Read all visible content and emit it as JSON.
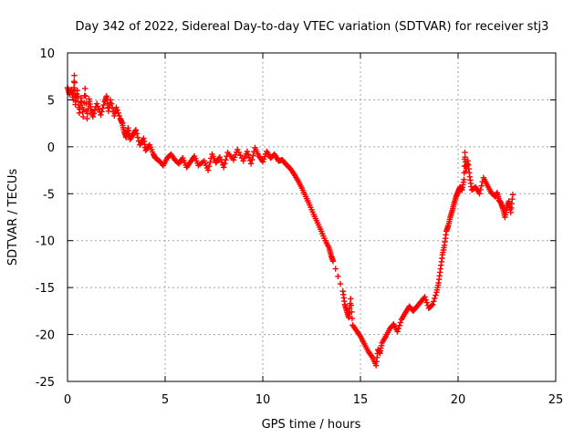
{
  "chart_data": {
    "type": "scatter",
    "title": "Day 342 of 2022, Sidereal Day-to-day VTEC variation (SDTVAR) for receiver stj3",
    "xlabel": "GPS time / hours",
    "ylabel": "SDTVAR / TECUs",
    "xlim": [
      0,
      25
    ],
    "ylim": [
      -25,
      10
    ],
    "xticks": [
      "0",
      "5",
      "10",
      "15",
      "20",
      "25"
    ],
    "yticks": [
      "10",
      "5",
      "0",
      "-5",
      "-10",
      "-15",
      "-20",
      "-25"
    ],
    "grid": true,
    "marker": "+",
    "color": "#ff0000",
    "series": [
      {
        "name": "SDTVAR",
        "points": [
          [
            0.0,
            6.3
          ],
          [
            0.1,
            5.6
          ],
          [
            0.2,
            6.1
          ],
          [
            0.3,
            5.0
          ],
          [
            0.35,
            7.6
          ],
          [
            0.4,
            4.5
          ],
          [
            0.5,
            6.0
          ],
          [
            0.6,
            3.6
          ],
          [
            0.7,
            5.2
          ],
          [
            0.8,
            3.2
          ],
          [
            0.9,
            6.2
          ],
          [
            1.0,
            3.0
          ],
          [
            1.1,
            5.1
          ],
          [
            1.2,
            4.0
          ],
          [
            1.3,
            3.2
          ],
          [
            1.5,
            4.6
          ],
          [
            1.7,
            3.4
          ],
          [
            1.9,
            4.8
          ],
          [
            2.0,
            5.4
          ],
          [
            2.1,
            3.8
          ],
          [
            2.2,
            5.0
          ],
          [
            2.4,
            3.3
          ],
          [
            2.5,
            4.2
          ],
          [
            2.7,
            3.0
          ],
          [
            2.8,
            2.5
          ],
          [
            2.9,
            1.6
          ],
          [
            3.0,
            1.0
          ],
          [
            3.1,
            2.0
          ],
          [
            3.2,
            0.8
          ],
          [
            3.4,
            1.4
          ],
          [
            3.5,
            1.8
          ],
          [
            3.7,
            0.2
          ],
          [
            3.9,
            0.9
          ],
          [
            4.0,
            -0.4
          ],
          [
            4.2,
            0.2
          ],
          [
            4.4,
            -0.8
          ],
          [
            4.5,
            -1.2
          ],
          [
            4.7,
            -1.5
          ],
          [
            4.9,
            -2.0
          ],
          [
            5.1,
            -1.2
          ],
          [
            5.3,
            -0.8
          ],
          [
            5.5,
            -1.4
          ],
          [
            5.7,
            -1.8
          ],
          [
            5.9,
            -1.2
          ],
          [
            6.1,
            -2.2
          ],
          [
            6.3,
            -1.6
          ],
          [
            6.5,
            -1.0
          ],
          [
            6.7,
            -2.0
          ],
          [
            7.0,
            -1.5
          ],
          [
            7.2,
            -2.5
          ],
          [
            7.4,
            -0.8
          ],
          [
            7.6,
            -1.7
          ],
          [
            7.8,
            -1.1
          ],
          [
            8.0,
            -2.2
          ],
          [
            8.2,
            -0.6
          ],
          [
            8.5,
            -1.4
          ],
          [
            8.7,
            -0.3
          ],
          [
            9.0,
            -1.5
          ],
          [
            9.2,
            -0.5
          ],
          [
            9.4,
            -1.8
          ],
          [
            9.6,
            -0.1
          ],
          [
            9.8,
            -1.0
          ],
          [
            10.0,
            -1.6
          ],
          [
            10.2,
            -0.5
          ],
          [
            10.4,
            -1.2
          ],
          [
            10.6,
            -0.8
          ],
          [
            10.8,
            -1.5
          ],
          [
            11.0,
            -1.4
          ],
          [
            11.2,
            -1.9
          ],
          [
            11.4,
            -2.3
          ],
          [
            11.6,
            -2.9
          ],
          [
            11.8,
            -3.6
          ],
          [
            12.0,
            -4.4
          ],
          [
            12.2,
            -5.3
          ],
          [
            12.4,
            -6.2
          ],
          [
            12.6,
            -7.2
          ],
          [
            12.8,
            -8.1
          ],
          [
            13.0,
            -9.0
          ],
          [
            13.2,
            -10.0
          ],
          [
            13.4,
            -10.8
          ],
          [
            13.5,
            -11.6
          ],
          [
            13.6,
            -12.2
          ],
          [
            14.1,
            -15.4
          ],
          [
            14.2,
            -16.8
          ],
          [
            14.3,
            -17.5
          ],
          [
            14.4,
            -18.2
          ],
          [
            14.5,
            -16.2
          ],
          [
            14.6,
            -19.0
          ],
          [
            14.8,
            -19.6
          ],
          [
            15.0,
            -20.2
          ],
          [
            15.2,
            -21.0
          ],
          [
            15.4,
            -21.8
          ],
          [
            15.6,
            -22.4
          ],
          [
            15.8,
            -23.3
          ],
          [
            15.9,
            -21.6
          ],
          [
            16.0,
            -22.0
          ],
          [
            16.1,
            -20.9
          ],
          [
            16.3,
            -20.2
          ],
          [
            16.5,
            -19.4
          ],
          [
            16.7,
            -18.9
          ],
          [
            16.9,
            -19.7
          ],
          [
            17.1,
            -18.4
          ],
          [
            17.3,
            -17.7
          ],
          [
            17.5,
            -17.0
          ],
          [
            17.7,
            -17.5
          ],
          [
            17.9,
            -17.0
          ],
          [
            18.1,
            -16.5
          ],
          [
            18.3,
            -16.0
          ],
          [
            18.5,
            -17.2
          ],
          [
            18.7,
            -16.8
          ],
          [
            18.9,
            -15.5
          ],
          [
            19.0,
            -14.5
          ],
          [
            19.1,
            -13.0
          ],
          [
            19.2,
            -11.5
          ],
          [
            19.3,
            -10.5
          ],
          [
            19.4,
            -9.0
          ],
          [
            19.5,
            -8.4
          ],
          [
            19.6,
            -7.5
          ],
          [
            19.7,
            -6.8
          ],
          [
            19.8,
            -6.0
          ],
          [
            19.9,
            -5.3
          ],
          [
            20.0,
            -4.8
          ],
          [
            20.1,
            -4.3
          ],
          [
            20.2,
            -4.6
          ],
          [
            20.3,
            -3.5
          ],
          [
            20.35,
            -0.6
          ],
          [
            20.4,
            -2.6
          ],
          [
            20.5,
            -1.5
          ],
          [
            20.6,
            -3.2
          ],
          [
            20.7,
            -4.6
          ],
          [
            20.9,
            -4.3
          ],
          [
            21.1,
            -5.0
          ],
          [
            21.3,
            -3.3
          ],
          [
            21.5,
            -4.1
          ],
          [
            21.7,
            -4.9
          ],
          [
            21.9,
            -5.3
          ],
          [
            22.0,
            -4.9
          ],
          [
            22.1,
            -5.7
          ],
          [
            22.2,
            -6.0
          ],
          [
            22.3,
            -6.6
          ],
          [
            22.4,
            -7.5
          ],
          [
            22.5,
            -6.5
          ],
          [
            22.6,
            -5.8
          ],
          [
            22.7,
            -7.0
          ],
          [
            22.8,
            -5.1
          ]
        ]
      }
    ]
  }
}
